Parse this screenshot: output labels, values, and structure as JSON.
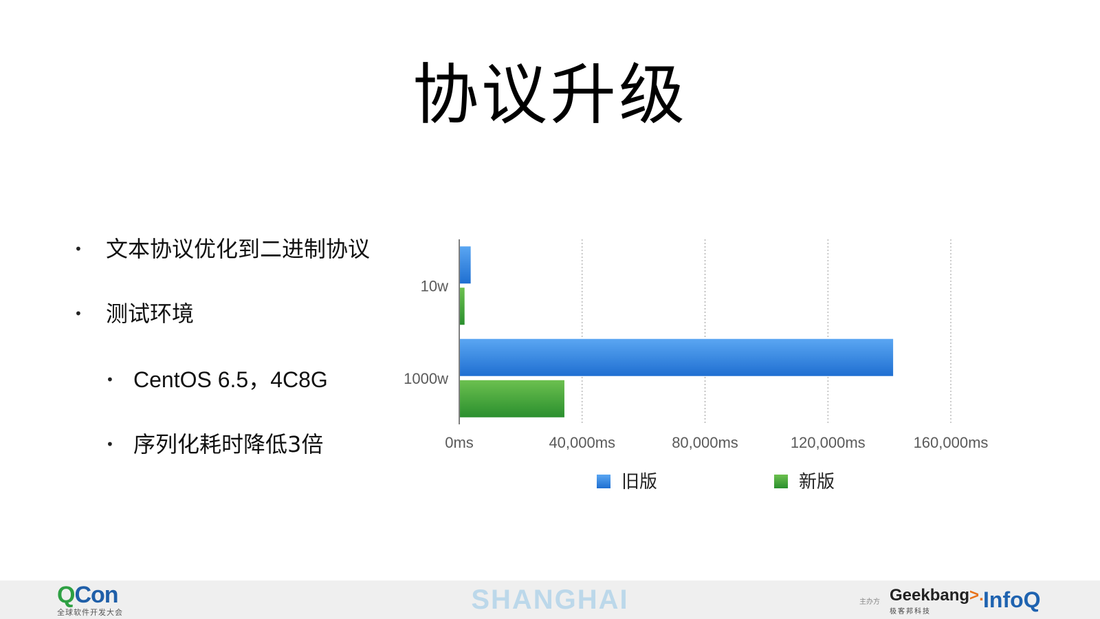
{
  "slide": {
    "title": "协议升级"
  },
  "bullets": [
    {
      "text": "文本协议优化到二进制协议",
      "level": 1
    },
    {
      "text": "测试环境",
      "level": 1
    },
    {
      "text": "CentOS 6.5，4C8G",
      "level": 2
    },
    {
      "text": "序列化耗时降低3倍",
      "level": 2
    }
  ],
  "bullet_glyph": "•",
  "chart_data": {
    "type": "bar",
    "orientation": "horizontal",
    "categories": [
      "10w",
      "1000w"
    ],
    "series": [
      {
        "name": "旧版",
        "values": [
          3500,
          141000
        ],
        "color": "#2f80e0"
      },
      {
        "name": "新版",
        "values": [
          1500,
          34000
        ],
        "color": "#3aa33a"
      }
    ],
    "xlim": [
      0,
      160000
    ],
    "xticks": [
      0,
      40000,
      80000,
      120000,
      160000
    ],
    "xtick_labels": [
      "0ms",
      "40,000ms",
      "80,000ms",
      "120,000ms",
      "160,000ms"
    ],
    "grid": "vertical dotted",
    "legend_position": "bottom"
  },
  "footer": {
    "qcon_q": "Q",
    "qcon_con": "Con",
    "qcon_sub": "全球软件开发大会",
    "city": "SHANGHAI",
    "host_label": "主办方",
    "geek_main": "Geekbang",
    "geek_arrow": ">.",
    "geek_sub": "极客邦科技",
    "infoq": "InfoQ"
  }
}
